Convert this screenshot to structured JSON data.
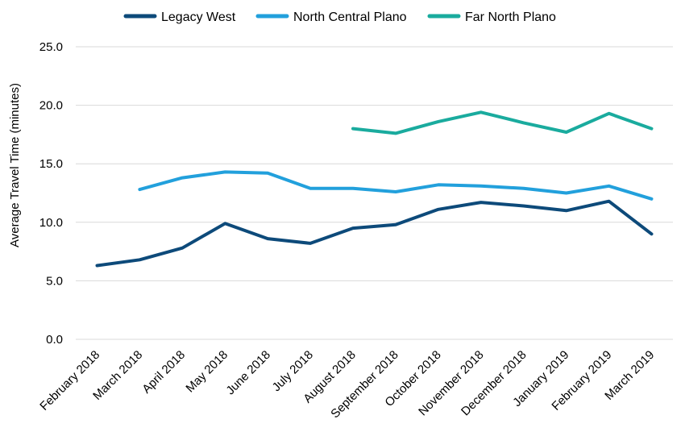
{
  "chart_data": {
    "type": "line",
    "ylabel": "Average Travel Time (minutes)",
    "xlabel": "",
    "ylim": [
      0,
      25
    ],
    "yticks": [
      "0.0",
      "5.0",
      "10.0",
      "15.0",
      "20.0",
      "25.0"
    ],
    "grid": "horizontal",
    "legend_position": "top",
    "categories": [
      "February 2018",
      "March 2018",
      "April  2018",
      "May 2018",
      "June 2018",
      "July 2018",
      "August 2018",
      "September 2018",
      "October 2018",
      "November 2018",
      "December 2018",
      "January 2019",
      "February 2019",
      "March 2019"
    ],
    "series": [
      {
        "name": "Legacy West",
        "color": "#0d4a7a",
        "values": [
          6.3,
          6.8,
          7.8,
          9.9,
          8.6,
          8.2,
          9.5,
          9.8,
          11.1,
          11.7,
          11.4,
          11.0,
          11.8,
          9.0
        ]
      },
      {
        "name": "North Central Plano",
        "color": "#22a0dc",
        "values": [
          null,
          12.8,
          13.8,
          14.3,
          14.2,
          12.9,
          12.9,
          12.6,
          13.2,
          13.1,
          12.9,
          12.5,
          13.1,
          12.0
        ]
      },
      {
        "name": "Far North Plano",
        "color": "#1aab9e",
        "values": [
          null,
          null,
          null,
          null,
          null,
          null,
          18.0,
          17.6,
          18.6,
          19.4,
          18.5,
          17.7,
          19.3,
          18.0
        ]
      }
    ]
  }
}
